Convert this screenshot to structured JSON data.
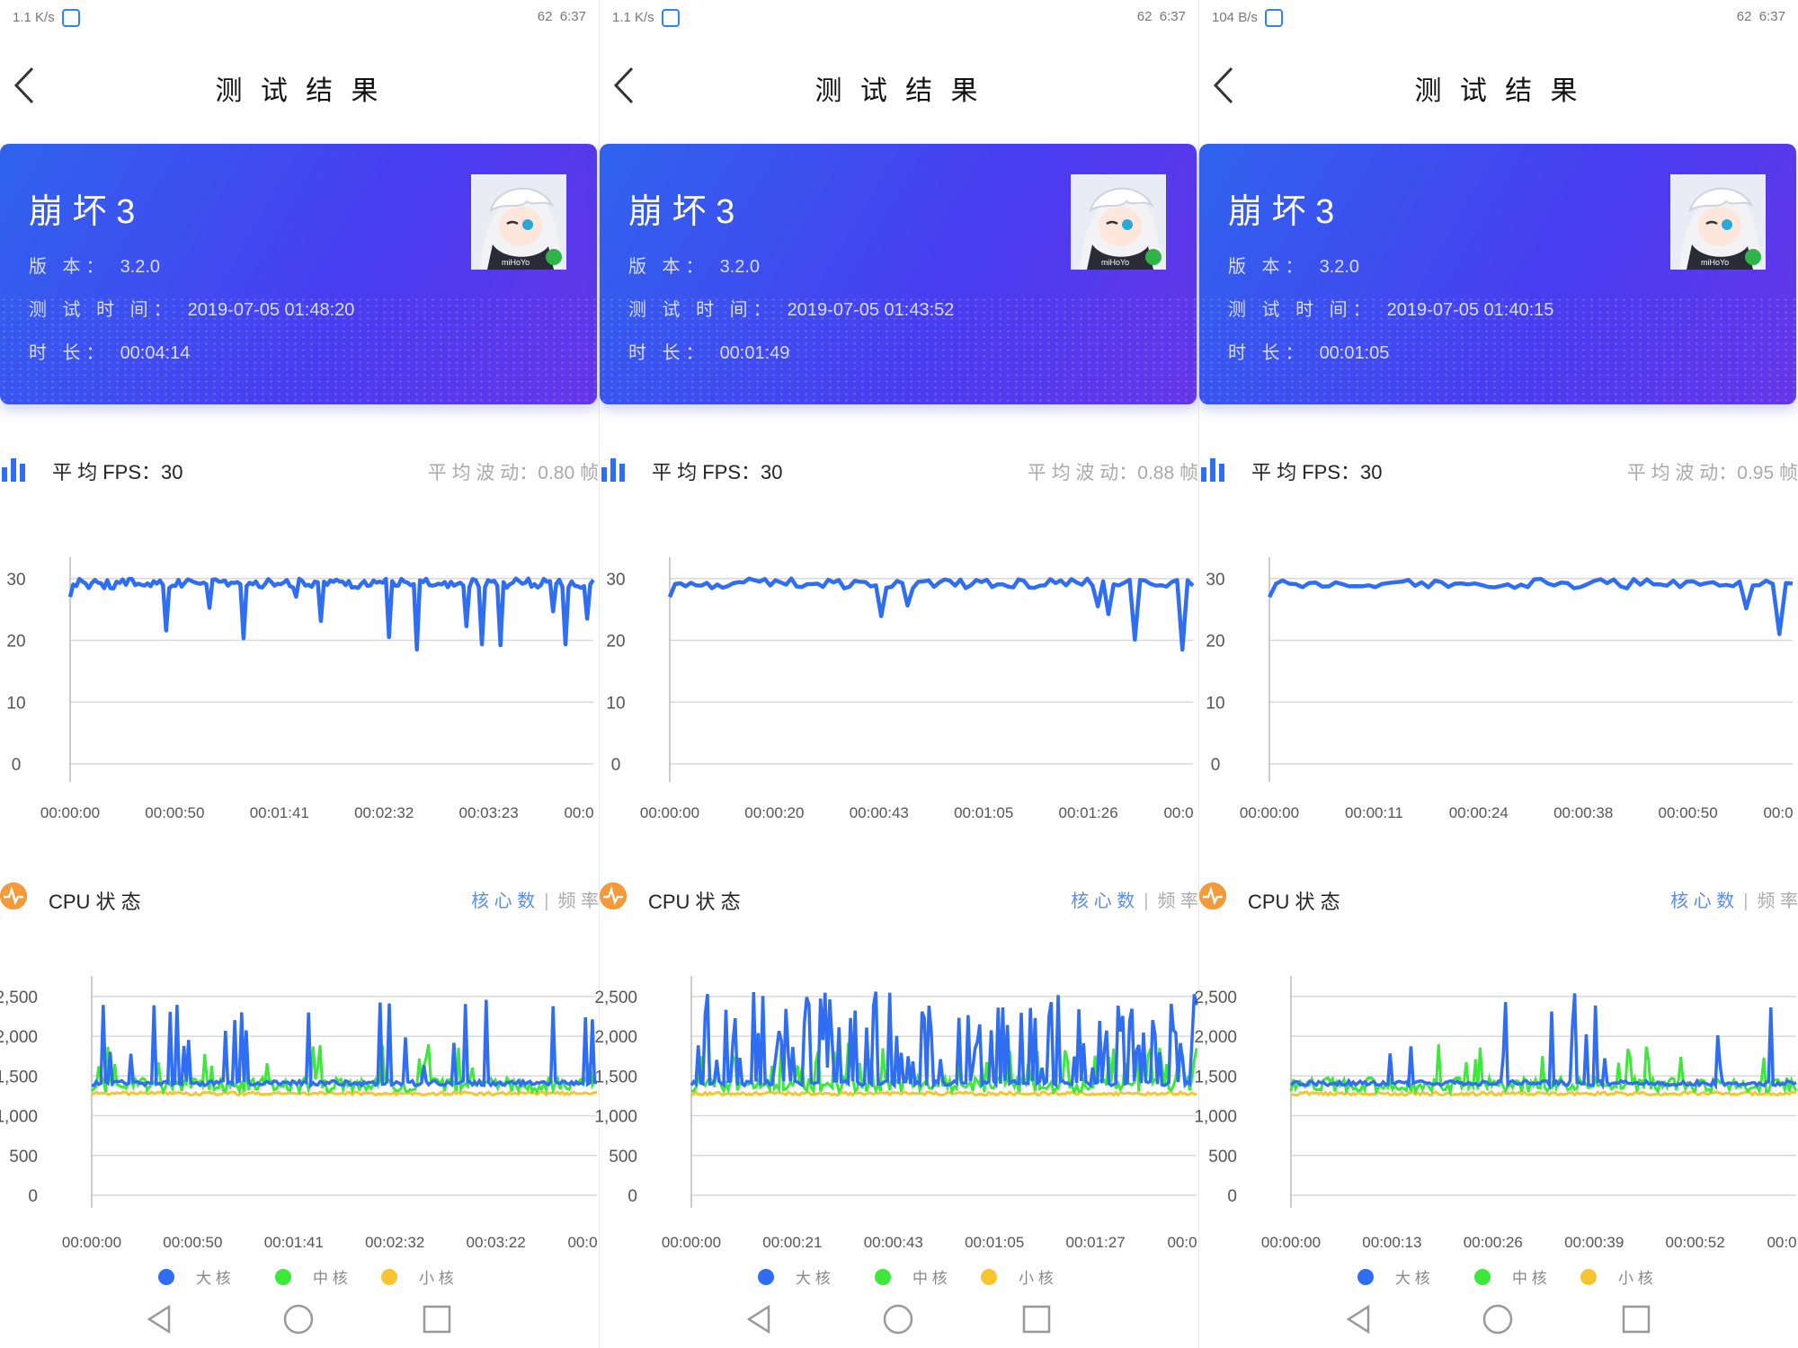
{
  "colors": {
    "fps_line": "#2f6ef2",
    "big_core": "#2f6ef2",
    "mid_core": "#3ee83a",
    "small_core": "#f7c531",
    "cpu_icon": "#f59a3a"
  },
  "icons": {
    "back": "chevron-left-icon",
    "fps": "bar-chart-icon",
    "cpu": "pulse-icon",
    "nav_back": "triangle-back-icon",
    "nav_home": "circle-home-icon",
    "nav_recent": "square-recent-icon"
  },
  "panels": [
    {
      "status": {
        "net": "1.1 K/s",
        "time": "6:37",
        "battery": "62"
      },
      "title": "测 试 结 果",
      "game": {
        "name": "崩 坏 3",
        "version_label": "版 本：",
        "version": "3.2.0",
        "test_time_label": "测 试 时 间：",
        "test_time": "2019-07-05 01:48:20",
        "duration_label": "时 长：",
        "duration": "00:04:14",
        "icon_text": "miHoYo"
      },
      "fps": {
        "avg_label": "平 均 FPS：",
        "avg": "30",
        "jitter_label": "平 均 波 动：",
        "jitter": "0.80 帧"
      },
      "fps_chart": {
        "type": "line",
        "y_ticks": [
          "0",
          "10",
          "20",
          "30"
        ],
        "x_ticks": [
          "00:00:00",
          "00:00:50",
          "00:01:41",
          "00:02:32",
          "00:03:23",
          "00:0"
        ],
        "ylim": [
          0,
          32
        ]
      },
      "cpu": {
        "label": "CPU 状 态",
        "tab1": "核 心 数",
        "tab2": "频 率"
      },
      "cpu_chart": {
        "type": "line",
        "y_ticks": [
          "0",
          "500",
          "1,000",
          "1,500",
          "2,000",
          "2,500"
        ],
        "x_ticks": [
          "00:00:00",
          "00:00:50",
          "00:01:41",
          "00:02:32",
          "00:03:22",
          "00:0"
        ],
        "ylim": [
          0,
          2600
        ]
      },
      "legend": {
        "big": "大 核",
        "mid": "中 核",
        "small": "小 核"
      }
    },
    {
      "status": {
        "net": "1.1 K/s",
        "time": "6:37",
        "battery": "62"
      },
      "title": "测 试 结 果",
      "game": {
        "name": "崩 坏 3",
        "version_label": "版 本：",
        "version": "3.2.0",
        "test_time_label": "测 试 时 间：",
        "test_time": "2019-07-05 01:43:52",
        "duration_label": "时 长：",
        "duration": "00:01:49",
        "icon_text": "miHoYo"
      },
      "fps": {
        "avg_label": "平 均 FPS：",
        "avg": "30",
        "jitter_label": "平 均 波 动：",
        "jitter": "0.88 帧"
      },
      "fps_chart": {
        "type": "line",
        "y_ticks": [
          "0",
          "10",
          "20",
          "30"
        ],
        "x_ticks": [
          "00:00:00",
          "00:00:20",
          "00:00:43",
          "00:01:05",
          "00:01:26",
          "00:0"
        ],
        "ylim": [
          0,
          32
        ]
      },
      "cpu": {
        "label": "CPU 状 态",
        "tab1": "核 心 数",
        "tab2": "频 率"
      },
      "cpu_chart": {
        "type": "line",
        "y_ticks": [
          "0",
          "500",
          "1,000",
          "1,500",
          "2,000",
          "2,500"
        ],
        "x_ticks": [
          "00:00:00",
          "00:00:21",
          "00:00:43",
          "00:01:05",
          "00:01:27",
          "00:0"
        ],
        "ylim": [
          0,
          2600
        ]
      },
      "legend": {
        "big": "大 核",
        "mid": "中 核",
        "small": "小 核"
      }
    },
    {
      "status": {
        "net": "104 B/s",
        "time": "6:37",
        "battery": "62"
      },
      "title": "测 试 结 果",
      "game": {
        "name": "崩 坏 3",
        "version_label": "版 本：",
        "version": "3.2.0",
        "test_time_label": "测 试 时 间：",
        "test_time": "2019-07-05 01:40:15",
        "duration_label": "时 长：",
        "duration": "00:01:05",
        "icon_text": "miHoYo"
      },
      "fps": {
        "avg_label": "平 均 FPS：",
        "avg": "30",
        "jitter_label": "平 均 波 动：",
        "jitter": "0.95 帧"
      },
      "fps_chart": {
        "type": "line",
        "y_ticks": [
          "0",
          "10",
          "20",
          "30"
        ],
        "x_ticks": [
          "00:00:00",
          "00:00:11",
          "00:00:24",
          "00:00:38",
          "00:00:50",
          "00:0"
        ],
        "ylim": [
          0,
          32
        ]
      },
      "cpu": {
        "label": "CPU 状 态",
        "tab1": "核 心 数",
        "tab2": "频 率"
      },
      "cpu_chart": {
        "type": "line",
        "y_ticks": [
          "0",
          "500",
          "1,000",
          "1,500",
          "2,000",
          "2,500"
        ],
        "x_ticks": [
          "00:00:00",
          "00:00:13",
          "00:00:26",
          "00:00:39",
          "00:00:52",
          "00:0"
        ],
        "ylim": [
          0,
          2600
        ]
      },
      "legend": {
        "big": "大 核",
        "mid": "中 核",
        "small": "小 核"
      }
    }
  ]
}
